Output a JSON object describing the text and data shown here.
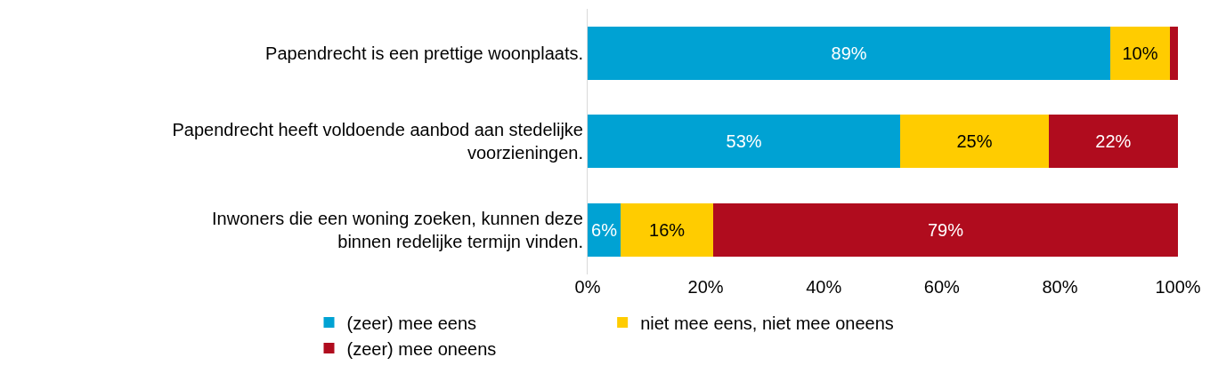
{
  "chart_data": {
    "type": "bar",
    "orientation": "horizontal",
    "stacked": true,
    "categories": [
      "Papendrecht is een prettige woonplaats.",
      "Papendrecht heeft voldoende aanbod aan stedelijke voorzieningen.",
      "Inwoners die een woning zoeken, kunnen deze binnen redelijke termijn vinden."
    ],
    "series": [
      {
        "name": "(zeer) mee eens",
        "color": "#00a2d3",
        "values": [
          88.6,
          53.0,
          5.6
        ],
        "value_labels": [
          "89%",
          "53%",
          "6%"
        ]
      },
      {
        "name": "niet mee eens, niet mee oneens",
        "color": "#ffcc00",
        "values": [
          10.0,
          25.1,
          15.7
        ],
        "value_labels": [
          "10%",
          "25%",
          "16%"
        ]
      },
      {
        "name": "(zeer) mee oneens",
        "color": "#b00c1e",
        "values": [
          1.4,
          21.9,
          78.7
        ],
        "value_labels": [
          null,
          "22%",
          "79%"
        ]
      }
    ],
    "xlim": [
      0,
      100
    ],
    "xticks": [
      {
        "value": 0,
        "label": "0%"
      },
      {
        "value": 20,
        "label": "20%"
      },
      {
        "value": 40,
        "label": "40%"
      },
      {
        "value": 60,
        "label": "60%"
      },
      {
        "value": 80,
        "label": "80%"
      },
      {
        "value": 100,
        "label": "100%"
      }
    ],
    "legend": "bottom"
  }
}
